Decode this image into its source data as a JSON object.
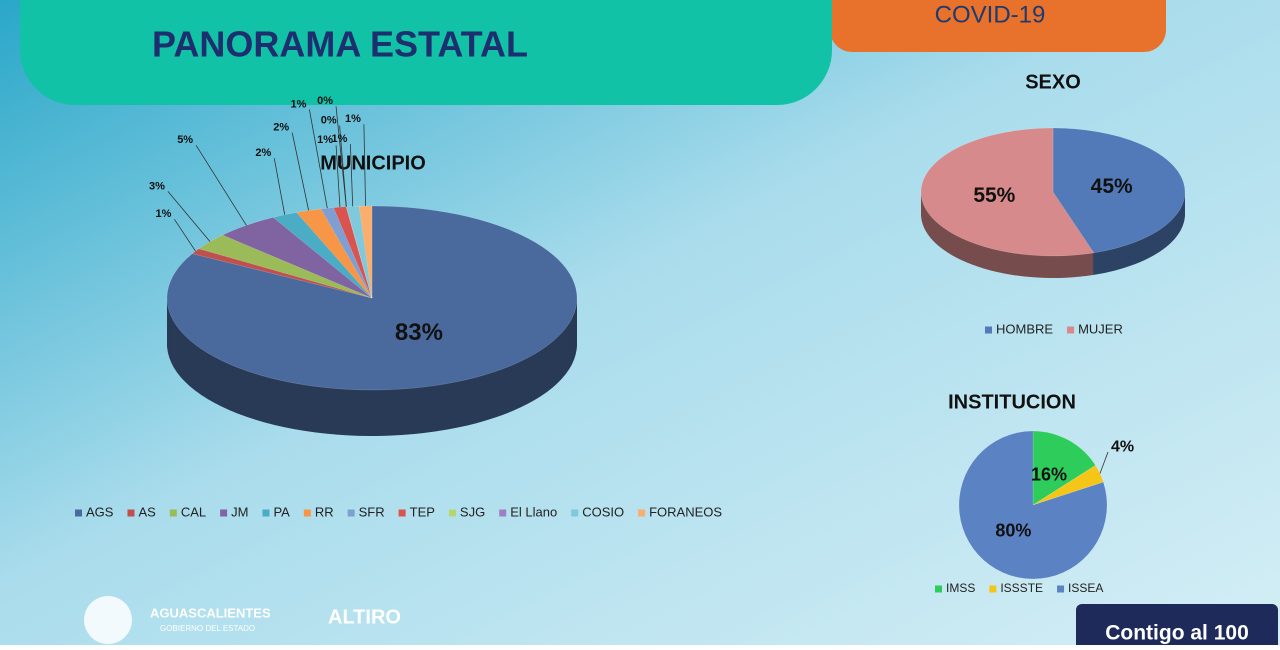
{
  "header": {
    "title": "PANORAMA ESTATAL",
    "tab": "COVID-19"
  },
  "footer": {
    "state": "AGUASCALIENTES",
    "government": "GOBIERNO DEL ESTADO",
    "campaign": "ALTIRO",
    "slogan": "Contigo al 100"
  },
  "chart_data": [
    {
      "type": "pie",
      "title": "MUNICIPIO",
      "categories": [
        "AGS",
        "AS",
        "CAL",
        "JM",
        "PA",
        "RR",
        "SFR",
        "TEP",
        "SJG",
        "El Llano",
        "COSIO",
        "FORANEOS"
      ],
      "values": [
        83,
        1,
        3,
        5,
        2,
        2,
        1,
        1,
        0,
        0,
        1,
        1
      ],
      "value_labels": [
        "83%",
        "1%",
        "3%",
        "5%",
        "2%",
        "2%",
        "1%",
        "1%",
        "0%",
        "0%",
        "1%",
        "1%"
      ],
      "colors": [
        "#4a6a9e",
        "#c0504d",
        "#9bbb59",
        "#8064a2",
        "#4bacc6",
        "#f79646",
        "#7f9fd3",
        "#d9534f",
        "#b5d56f",
        "#9f7fc4",
        "#7fc9dc",
        "#f9ae6c"
      ]
    },
    {
      "type": "pie",
      "title": "SEXO",
      "categories": [
        "HOMBRE",
        "MUJER"
      ],
      "values": [
        45,
        55
      ],
      "value_labels": [
        "45%",
        "55%"
      ],
      "colors": [
        "#5279b8",
        "#d78a8c"
      ]
    },
    {
      "type": "pie",
      "title": "INSTITUCION",
      "categories": [
        "IMSS",
        "ISSSTE",
        "ISSEA"
      ],
      "values": [
        16,
        4,
        80
      ],
      "value_labels": [
        "16%",
        "4%",
        "80%"
      ],
      "colors": [
        "#2ecc5b",
        "#f5c518",
        "#5b82c2"
      ]
    }
  ]
}
